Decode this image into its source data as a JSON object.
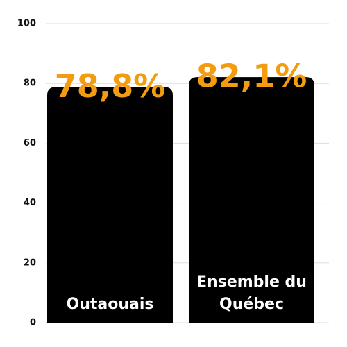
{
  "chart_data": {
    "type": "bar",
    "categories": [
      "Outaouais",
      "Ensemble du Québec"
    ],
    "values": [
      78.8,
      82.1
    ],
    "value_labels": [
      "78,8%",
      "82,1%"
    ],
    "color": "#000000",
    "label_color": "#f39c12",
    "ylim": [
      0,
      100
    ],
    "yticks": [
      0,
      20,
      40,
      60,
      80,
      100
    ],
    "grid": true
  }
}
